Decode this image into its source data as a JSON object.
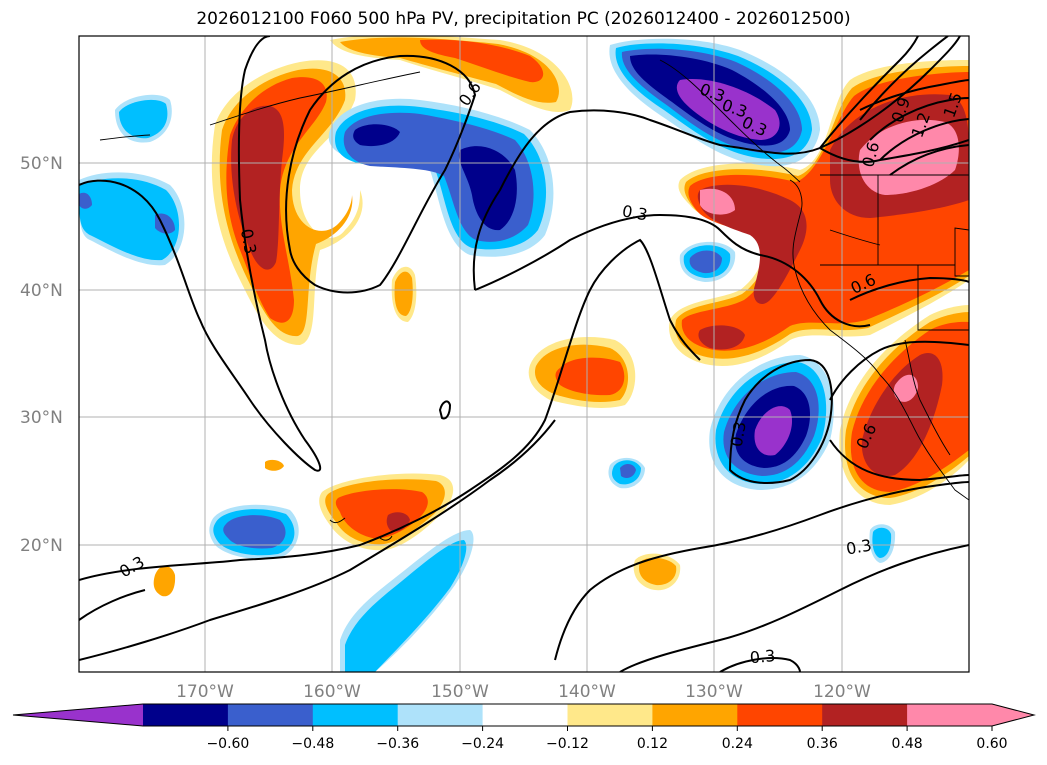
{
  "title": "2026012100 F060 500 hPa PV, precipitation PC (2026012400 - 2026012500)",
  "map": {
    "lat_labels": [
      "50°N",
      "40°N",
      "30°N",
      "20°N"
    ],
    "lon_labels": [
      "170°W",
      "160°W",
      "150°W",
      "140°W",
      "130°W",
      "120°W"
    ],
    "contour_labels": [
      "0.6",
      "0.3",
      "0.3",
      "0.3",
      "0.3",
      "0.3",
      "0.6",
      "0.9",
      "1.2",
      "1.5",
      "0.6",
      "0.3",
      "0.6",
      "0.3",
      "0.3",
      "0.3"
    ]
  },
  "colorbar": {
    "ticks": [
      "−0.60",
      "−0.48",
      "−0.36",
      "−0.24",
      "−0.12",
      "0.12",
      "0.24",
      "0.36",
      "0.48",
      "0.60"
    ],
    "colors": [
      "#9932cc",
      "#00008b",
      "#3a5fcd",
      "#00bfff",
      "#aee2fa",
      "#ffffff",
      "#ffe88a",
      "#ffa500",
      "#ff4500",
      "#b22222",
      "#ff88aa",
      "#ff88aa"
    ]
  }
}
